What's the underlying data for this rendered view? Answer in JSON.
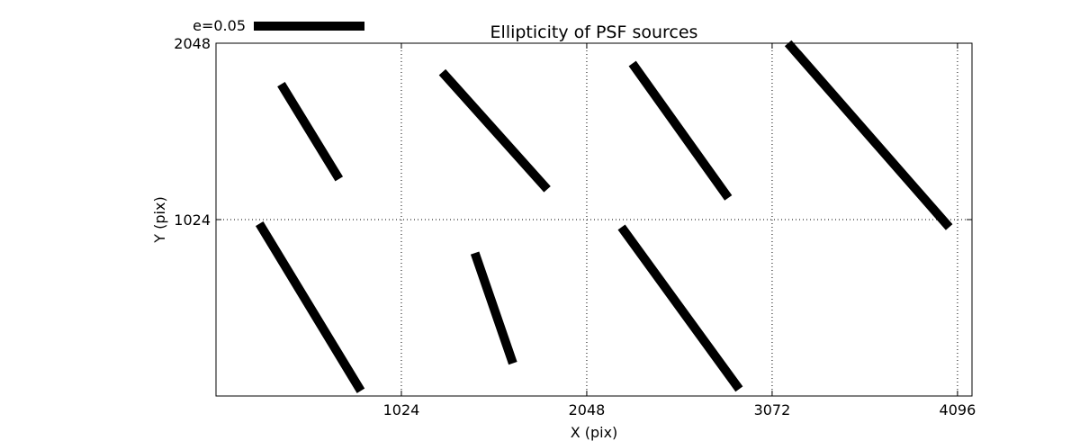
{
  "chart_data": {
    "type": "vector-field",
    "title": "Ellipticity of PSF sources",
    "xlabel": "X (pix)",
    "ylabel": "Y (pix)",
    "xlim": [
      0,
      4176
    ],
    "ylim": [
      0,
      2048
    ],
    "xticks": [
      1024,
      2048,
      3072,
      4096
    ],
    "yticks": [
      1024,
      2048
    ],
    "grid": true,
    "grid_style": "dotted",
    "legend": {
      "label": "e=0.05",
      "magnitude": 0.05,
      "placement": "top-left-outside"
    },
    "color": "#000000",
    "segments": [
      {
        "name": "source-1",
        "x1": 360,
        "y1": 1810,
        "x2": 680,
        "y2": 1260
      },
      {
        "name": "source-2",
        "x1": 1250,
        "y1": 1880,
        "x2": 1830,
        "y2": 1200
      },
      {
        "name": "source-3",
        "x1": 2300,
        "y1": 1930,
        "x2": 2830,
        "y2": 1150
      },
      {
        "name": "source-4",
        "x1": 3160,
        "y1": 2048,
        "x2": 4050,
        "y2": 980
      },
      {
        "name": "source-5",
        "x1": 240,
        "y1": 1000,
        "x2": 800,
        "y2": 30
      },
      {
        "name": "source-6",
        "x1": 1430,
        "y1": 830,
        "x2": 1640,
        "y2": 190
      },
      {
        "name": "source-7",
        "x1": 2240,
        "y1": 980,
        "x2": 2890,
        "y2": 40
      }
    ]
  }
}
